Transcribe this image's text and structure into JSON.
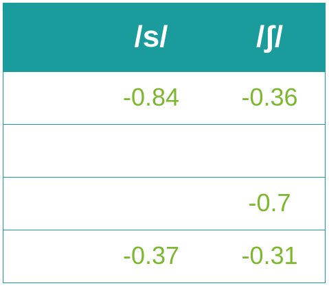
{
  "table": {
    "headers": [
      "/s/",
      "/ʃ/"
    ],
    "rows": [
      [
        "-0.84",
        "-0.36"
      ],
      [
        "",
        ""
      ],
      [
        "",
        "-0.7"
      ],
      [
        "-0.37",
        "-0.31"
      ]
    ]
  },
  "colors": {
    "header_background": "#1a9c9c",
    "header_text": "#ffffff",
    "value_text": "#7cb82f",
    "border": "#1a9c9c"
  }
}
